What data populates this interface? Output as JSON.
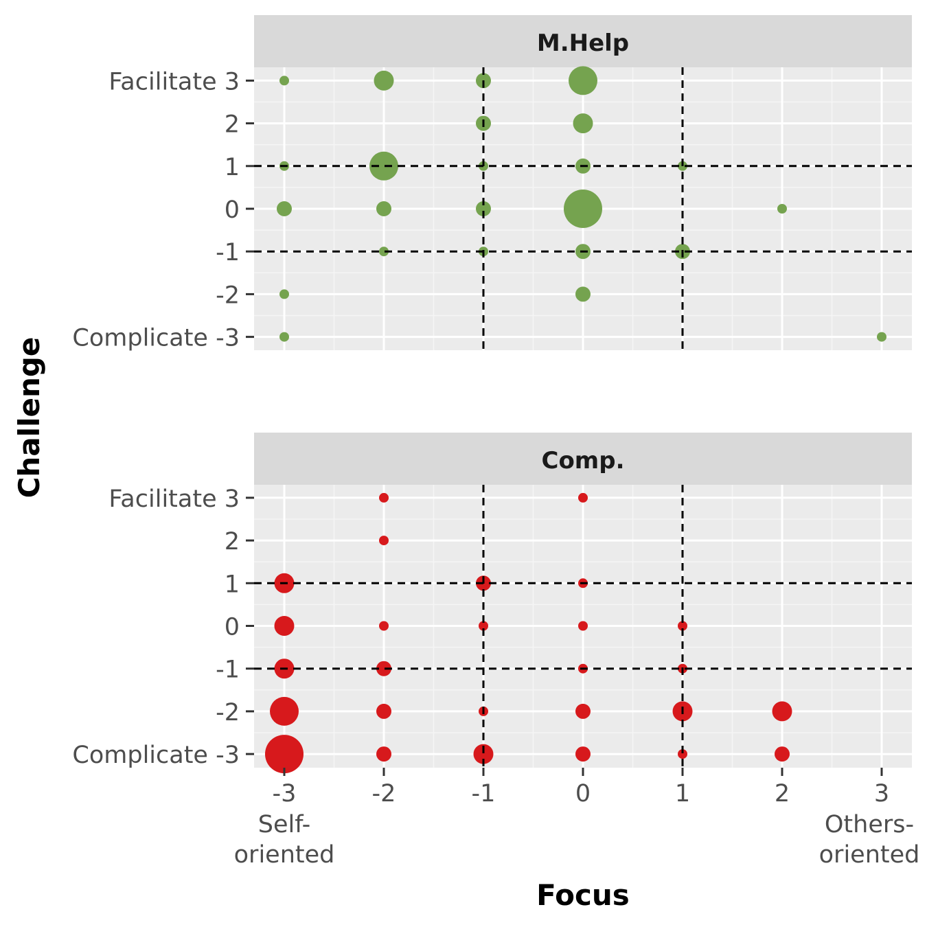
{
  "chart_data": {
    "type": "scatter",
    "xlabel": "Focus",
    "ylabel": "Challenge",
    "xlim": [
      -3,
      3
    ],
    "ylim": [
      -3,
      3
    ],
    "x_ticks": [
      "-3",
      "-2",
      "-1",
      "0",
      "1",
      "2",
      "3"
    ],
    "x_tick_values": [
      -3,
      -2,
      -1,
      0,
      1,
      2,
      3
    ],
    "x_end_labels": {
      "left": [
        "Self-",
        "oriented"
      ],
      "right": [
        "Others-",
        "oriented"
      ]
    },
    "y_ticks": [
      "Complicate -3",
      "-2",
      "-1",
      "0",
      "1",
      "2",
      "Facilitate 3"
    ],
    "y_tick_values": [
      -3,
      -2,
      -1,
      0,
      1,
      2,
      3
    ],
    "reference_lines": {
      "x": [
        -1,
        1
      ],
      "y": [
        -1,
        1
      ],
      "style": "dashed",
      "color": "#000000"
    },
    "panels": [
      {
        "name": "M.Help",
        "color": "#75a34f",
        "points": [
          {
            "x": -3,
            "y": 3,
            "size": 1
          },
          {
            "x": -2,
            "y": 3,
            "size": 3
          },
          {
            "x": -1,
            "y": 3,
            "size": 2
          },
          {
            "x": 0,
            "y": 3,
            "size": 4
          },
          {
            "x": -1,
            "y": 2,
            "size": 2
          },
          {
            "x": 0,
            "y": 2,
            "size": 3
          },
          {
            "x": -3,
            "y": 1,
            "size": 1
          },
          {
            "x": -2,
            "y": 1,
            "size": 4
          },
          {
            "x": -1,
            "y": 1,
            "size": 1
          },
          {
            "x": 0,
            "y": 1,
            "size": 2
          },
          {
            "x": 1,
            "y": 1,
            "size": 1
          },
          {
            "x": -3,
            "y": 0,
            "size": 2
          },
          {
            "x": -2,
            "y": 0,
            "size": 2
          },
          {
            "x": -1,
            "y": 0,
            "size": 2
          },
          {
            "x": 0,
            "y": 0,
            "size": 6
          },
          {
            "x": 2,
            "y": 0,
            "size": 1
          },
          {
            "x": -2,
            "y": -1,
            "size": 1
          },
          {
            "x": -1,
            "y": -1,
            "size": 1
          },
          {
            "x": 0,
            "y": -1,
            "size": 2
          },
          {
            "x": 1,
            "y": -1,
            "size": 2
          },
          {
            "x": -3,
            "y": -2,
            "size": 1
          },
          {
            "x": 0,
            "y": -2,
            "size": 2
          },
          {
            "x": -3,
            "y": -3,
            "size": 1
          },
          {
            "x": 3,
            "y": -3,
            "size": 1
          }
        ]
      },
      {
        "name": "Comp.",
        "color": "#d7191c",
        "points": [
          {
            "x": -2,
            "y": 3,
            "size": 1
          },
          {
            "x": 0,
            "y": 3,
            "size": 1
          },
          {
            "x": -2,
            "y": 2,
            "size": 1
          },
          {
            "x": -3,
            "y": 1,
            "size": 3
          },
          {
            "x": -1,
            "y": 1,
            "size": 2
          },
          {
            "x": 0,
            "y": 1,
            "size": 1
          },
          {
            "x": -3,
            "y": 0,
            "size": 3
          },
          {
            "x": -2,
            "y": 0,
            "size": 1
          },
          {
            "x": -1,
            "y": 0,
            "size": 1
          },
          {
            "x": 0,
            "y": 0,
            "size": 1
          },
          {
            "x": 1,
            "y": 0,
            "size": 1
          },
          {
            "x": -3,
            "y": -1,
            "size": 3
          },
          {
            "x": -2,
            "y": -1,
            "size": 2
          },
          {
            "x": 0,
            "y": -1,
            "size": 1
          },
          {
            "x": 1,
            "y": -1,
            "size": 1
          },
          {
            "x": -3,
            "y": -2,
            "size": 4
          },
          {
            "x": -2,
            "y": -2,
            "size": 2
          },
          {
            "x": -1,
            "y": -2,
            "size": 1
          },
          {
            "x": 0,
            "y": -2,
            "size": 2
          },
          {
            "x": 1,
            "y": -2,
            "size": 3
          },
          {
            "x": 2,
            "y": -2,
            "size": 3
          },
          {
            "x": -3,
            "y": -3,
            "size": 6
          },
          {
            "x": -2,
            "y": -3,
            "size": 2
          },
          {
            "x": -1,
            "y": -3,
            "size": 3
          },
          {
            "x": 0,
            "y": -3,
            "size": 2
          },
          {
            "x": 1,
            "y": -3,
            "size": 1
          },
          {
            "x": 2,
            "y": -3,
            "size": 2
          }
        ]
      }
    ],
    "grid": true,
    "legend": "none"
  }
}
